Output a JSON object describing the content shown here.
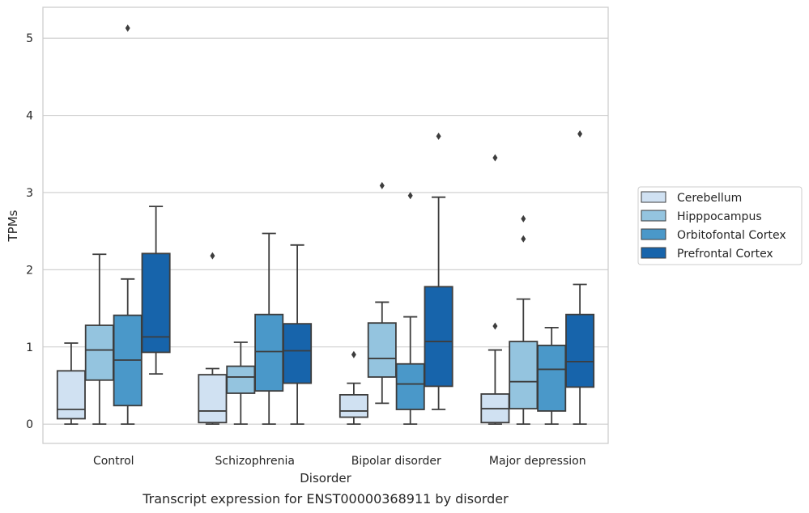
{
  "caption": "Transcript expression for ENST00000368911 by disorder",
  "chart_data": {
    "type": "box",
    "xlabel": "Disorder",
    "ylabel": "TPMs",
    "ylim": [
      -0.25,
      5.4
    ],
    "yticks": [
      0,
      1,
      2,
      3,
      4,
      5
    ],
    "grid": true,
    "legend_position": "right",
    "categories": [
      "Control",
      "Schizophrenia",
      "Bipolar disorder",
      "Major depression"
    ],
    "series": [
      {
        "name": "Cerebellum",
        "color": "#d0e1f2",
        "boxes": [
          {
            "whislo": 0.0,
            "q1": 0.07,
            "med": 0.19,
            "q3": 0.69,
            "whishi": 1.05,
            "fliers": []
          },
          {
            "whislo": 0.0,
            "q1": 0.02,
            "med": 0.17,
            "q3": 0.64,
            "whishi": 0.72,
            "fliers": [
              2.18
            ]
          },
          {
            "whislo": 0.0,
            "q1": 0.09,
            "med": 0.17,
            "q3": 0.38,
            "whishi": 0.53,
            "fliers": [
              0.9
            ]
          },
          {
            "whislo": 0.0,
            "q1": 0.02,
            "med": 0.2,
            "q3": 0.39,
            "whishi": 0.96,
            "fliers": [
              1.27,
              3.45
            ]
          }
        ]
      },
      {
        "name": "Hipppocampus",
        "color": "#94c4df",
        "boxes": [
          {
            "whislo": 0.0,
            "q1": 0.57,
            "med": 0.96,
            "q3": 1.28,
            "whishi": 2.2,
            "fliers": []
          },
          {
            "whislo": 0.0,
            "q1": 0.4,
            "med": 0.61,
            "q3": 0.75,
            "whishi": 1.06,
            "fliers": []
          },
          {
            "whislo": 0.27,
            "q1": 0.61,
            "med": 0.85,
            "q3": 1.31,
            "whishi": 1.58,
            "fliers": [
              3.09
            ]
          },
          {
            "whislo": 0.0,
            "q1": 0.2,
            "med": 0.55,
            "q3": 1.07,
            "whishi": 1.62,
            "fliers": [
              2.4,
              2.66
            ]
          }
        ]
      },
      {
        "name": "Orbitofontal Cortex",
        "color": "#4a98c9",
        "boxes": [
          {
            "whislo": 0.0,
            "q1": 0.24,
            "med": 0.83,
            "q3": 1.41,
            "whishi": 1.88,
            "fliers": [
              5.13
            ]
          },
          {
            "whislo": 0.0,
            "q1": 0.43,
            "med": 0.94,
            "q3": 1.42,
            "whishi": 2.47,
            "fliers": []
          },
          {
            "whislo": 0.0,
            "q1": 0.19,
            "med": 0.52,
            "q3": 0.78,
            "whishi": 1.39,
            "fliers": [
              2.96
            ]
          },
          {
            "whislo": 0.0,
            "q1": 0.17,
            "med": 0.71,
            "q3": 1.02,
            "whishi": 1.25,
            "fliers": []
          }
        ]
      },
      {
        "name": "Prefrontal Cortex",
        "color": "#1764ab",
        "boxes": [
          {
            "whislo": 0.65,
            "q1": 0.93,
            "med": 1.13,
            "q3": 2.21,
            "whishi": 2.82,
            "fliers": []
          },
          {
            "whislo": 0.0,
            "q1": 0.53,
            "med": 0.95,
            "q3": 1.3,
            "whishi": 2.32,
            "fliers": []
          },
          {
            "whislo": 0.19,
            "q1": 0.49,
            "med": 1.07,
            "q3": 1.78,
            "whishi": 2.94,
            "fliers": [
              3.73
            ]
          },
          {
            "whislo": 0.0,
            "q1": 0.48,
            "med": 0.81,
            "q3": 1.42,
            "whishi": 1.81,
            "fliers": [
              3.76
            ]
          }
        ]
      }
    ]
  }
}
